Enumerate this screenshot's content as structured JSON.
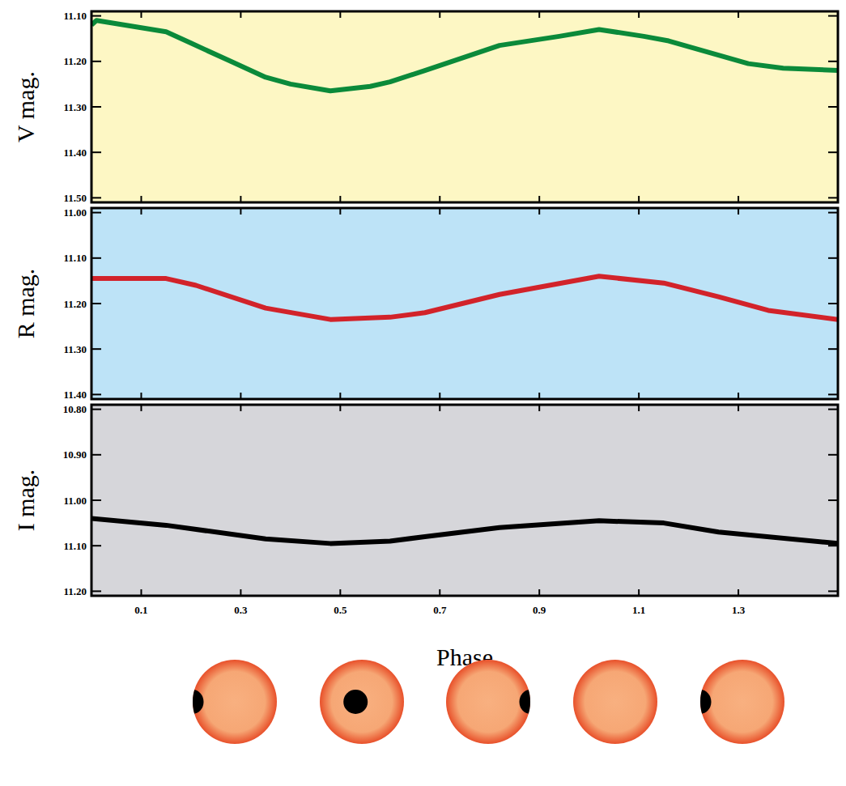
{
  "chart_data": [
    {
      "type": "line",
      "y_label": "V mag.",
      "x": [
        0,
        0.01,
        0.15,
        0.2,
        0.28,
        0.35,
        0.4,
        0.48,
        0.56,
        0.6,
        0.67,
        0.82,
        0.94,
        1.02,
        1.11,
        1.16,
        1.24,
        1.32,
        1.39,
        1.5
      ],
      "series": [
        {
          "color": "#0b8a3a",
          "values": [
            11.12,
            11.11,
            11.135,
            11.16,
            11.2,
            11.235,
            11.25,
            11.265,
            11.255,
            11.245,
            11.22,
            11.165,
            11.145,
            11.13,
            11.145,
            11.155,
            11.18,
            11.205,
            11.215,
            11.22
          ]
        }
      ],
      "xlim": [
        0,
        1.5
      ],
      "xticks": [
        0.1,
        0.3,
        0.5,
        0.7,
        0.9,
        1.1,
        1.3
      ],
      "ylim": [
        11.51,
        11.09
      ],
      "yticks": [
        {
          "value": 11.1,
          "label": "11.10"
        },
        {
          "value": 11.2,
          "label": "11.20"
        },
        {
          "value": 11.3,
          "label": "11.30"
        },
        {
          "value": 11.4,
          "label": "11.40"
        },
        {
          "value": 11.5,
          "label": "11.50"
        }
      ],
      "tick_labels": "y"
    },
    {
      "type": "line",
      "y_label": "R mag.",
      "x": [
        0,
        0.15,
        0.21,
        0.35,
        0.48,
        0.6,
        0.67,
        0.82,
        1.02,
        1.15,
        1.26,
        1.36,
        1.5
      ],
      "series": [
        {
          "color": "#d2232a",
          "values": [
            11.145,
            11.145,
            11.16,
            11.21,
            11.235,
            11.23,
            11.22,
            11.18,
            11.14,
            11.155,
            11.185,
            11.215,
            11.235
          ]
        }
      ],
      "xlim": [
        0,
        1.5
      ],
      "xticks": [
        0.1,
        0.3,
        0.5,
        0.7,
        0.9,
        1.1,
        1.3
      ],
      "ylim": [
        11.41,
        10.99
      ],
      "yticks": [
        {
          "value": 11.0,
          "label": "11.00"
        },
        {
          "value": 11.1,
          "label": "11.10"
        },
        {
          "value": 11.2,
          "label": "11.20"
        },
        {
          "value": 11.3,
          "label": "11.30"
        },
        {
          "value": 11.4,
          "label": "11.40"
        }
      ],
      "tick_labels": "y"
    },
    {
      "type": "line",
      "y_label": "I mag.",
      "x_label": "Phase",
      "x": [
        0,
        0.15,
        0.35,
        0.48,
        0.6,
        0.67,
        0.82,
        1.02,
        1.15,
        1.26,
        1.5
      ],
      "series": [
        {
          "color": "#000000",
          "values": [
            11.04,
            11.055,
            11.085,
            11.095,
            11.09,
            11.08,
            11.06,
            11.045,
            11.05,
            11.07,
            11.095
          ]
        }
      ],
      "xlim": [
        0,
        1.5
      ],
      "xticks": [
        0.1,
        0.3,
        0.5,
        0.7,
        0.9,
        1.1,
        1.3
      ],
      "ylim": [
        11.21,
        10.79
      ],
      "yticks": [
        {
          "value": 10.8,
          "label": "10.80"
        },
        {
          "value": 10.9,
          "label": "10.90"
        },
        {
          "value": 11.0,
          "label": "11.00"
        },
        {
          "value": 11.1,
          "label": "11.10"
        },
        {
          "value": 11.2,
          "label": "11.20"
        }
      ],
      "tick_labels": true
    }
  ]
}
